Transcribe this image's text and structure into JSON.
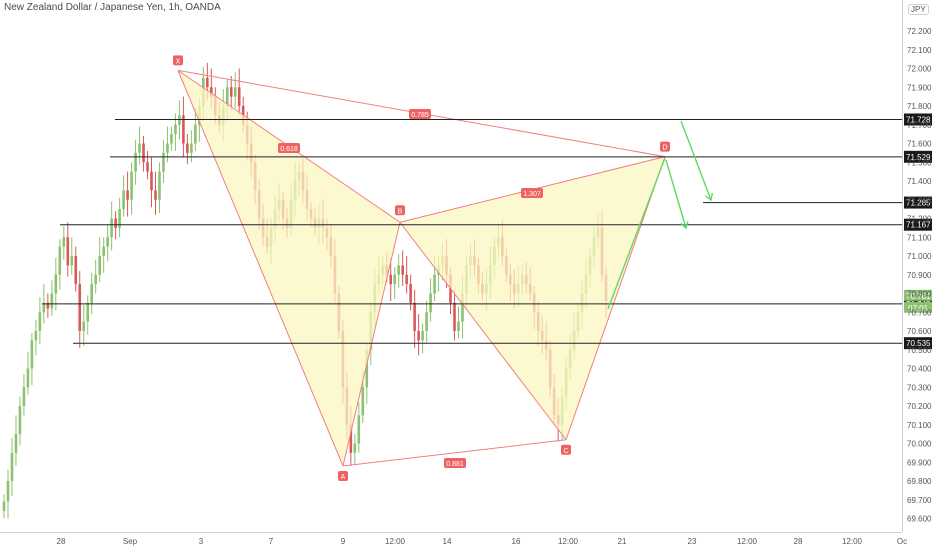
{
  "header": {
    "title": "New Zealand Dollar / Japanese Yen, 1h, OANDA",
    "currency": "JPY"
  },
  "chart_data": {
    "type": "candlestick",
    "title": "New Zealand Dollar / Japanese Yen, 1h, OANDA",
    "ylim": [
      69.59,
      72.28
    ],
    "y_ticks": [
      "72.200",
      "72.100",
      "72.000",
      "71.900",
      "71.800",
      "71.700",
      "71.600",
      "71.500",
      "71.400",
      "71.300",
      "71.200",
      "71.100",
      "71.000",
      "70.900",
      "70.800",
      "70.700",
      "70.600",
      "70.500",
      "70.400",
      "70.300",
      "70.200",
      "70.100",
      "70.000",
      "69.900",
      "69.800",
      "69.700",
      "69.600"
    ],
    "x_ticks": [
      "28",
      "Sep",
      "3",
      "7",
      "9",
      "12:00",
      "14",
      "16",
      "12:00",
      "21",
      "23",
      "12:00",
      "28",
      "12:00",
      "Oc"
    ],
    "colors": {
      "up": "#8cc26f",
      "down": "#d9585a",
      "pattern_line": "#f08080",
      "pattern_fill": "#fbf6c0",
      "arrow": "#65d765",
      "label_bg": "#f06262"
    },
    "pattern": {
      "points": [
        {
          "name": "X",
          "price": 71.99
        },
        {
          "name": "A",
          "price": 69.88
        },
        {
          "name": "B",
          "price": 71.18
        },
        {
          "name": "C",
          "price": 70.02
        },
        {
          "name": "D",
          "price": 71.53
        }
      ],
      "ratios": [
        {
          "label": "0.618",
          "between": "XA-B"
        },
        {
          "label": "0.785",
          "between": "X-D"
        },
        {
          "label": "1.307",
          "between": "B-D"
        },
        {
          "label": "0.881",
          "between": "A-C"
        }
      ]
    },
    "horizontal_levels": [
      {
        "price": 71.728,
        "label": "71.728",
        "style": "box"
      },
      {
        "price": 71.529,
        "label": "71.529",
        "style": "box"
      },
      {
        "price": 71.285,
        "label": "71.285",
        "style": "box"
      },
      {
        "price": 71.167,
        "label": "71.167",
        "style": "box"
      },
      {
        "price": 70.745,
        "label": "70.745",
        "style": "box"
      },
      {
        "price": 70.535,
        "label": "70.535",
        "style": "box"
      }
    ],
    "current_price": {
      "price": 70.761,
      "label": "70.761",
      "countdown": "07:01"
    },
    "candles_close": [
      69.69,
      69.8,
      69.95,
      70.05,
      70.2,
      70.3,
      70.4,
      70.55,
      70.6,
      70.7,
      70.75,
      70.72,
      70.8,
      70.9,
      71.05,
      71.1,
      70.95,
      71.0,
      70.85,
      70.6,
      70.65,
      70.75,
      70.85,
      70.9,
      71.0,
      71.05,
      71.1,
      71.2,
      71.15,
      71.25,
      71.35,
      71.3,
      71.45,
      71.55,
      71.6,
      71.5,
      71.45,
      71.35,
      71.3,
      71.45,
      71.55,
      71.6,
      71.65,
      71.7,
      71.75,
      71.6,
      71.55,
      71.6,
      71.7,
      71.8,
      71.95,
      71.9,
      71.85,
      71.75,
      71.7,
      71.8,
      71.9,
      71.85,
      71.9,
      71.8,
      71.7,
      71.6,
      71.5,
      71.35,
      71.2,
      71.1,
      71.05,
      71.15,
      71.25,
      71.3,
      71.2,
      71.15,
      71.3,
      71.4,
      71.45,
      71.35,
      71.25,
      71.2,
      71.15,
      71.2,
      71.15,
      71.1,
      71.0,
      70.8,
      70.6,
      70.3,
      70.1,
      69.95,
      70.0,
      70.15,
      70.3,
      70.5,
      70.7,
      70.85,
      70.9,
      70.95,
      70.9,
      70.85,
      70.9,
      70.95,
      70.9,
      70.85,
      70.75,
      70.6,
      70.55,
      70.6,
      70.7,
      70.8,
      70.9,
      70.95,
      71.0,
      70.9,
      70.75,
      70.6,
      70.65,
      70.8,
      70.95,
      71.0,
      70.95,
      70.85,
      70.8,
      70.85,
      70.95,
      71.05,
      71.1,
      71.0,
      70.9,
      70.85,
      70.8,
      70.85,
      70.9,
      70.85,
      70.8,
      70.7,
      70.6,
      70.55,
      70.5,
      70.3,
      70.15,
      70.1,
      70.25,
      70.4,
      70.5,
      70.6,
      70.7,
      70.8,
      70.9,
      71.0,
      71.1,
      71.15,
      70.9,
      70.76
    ]
  }
}
